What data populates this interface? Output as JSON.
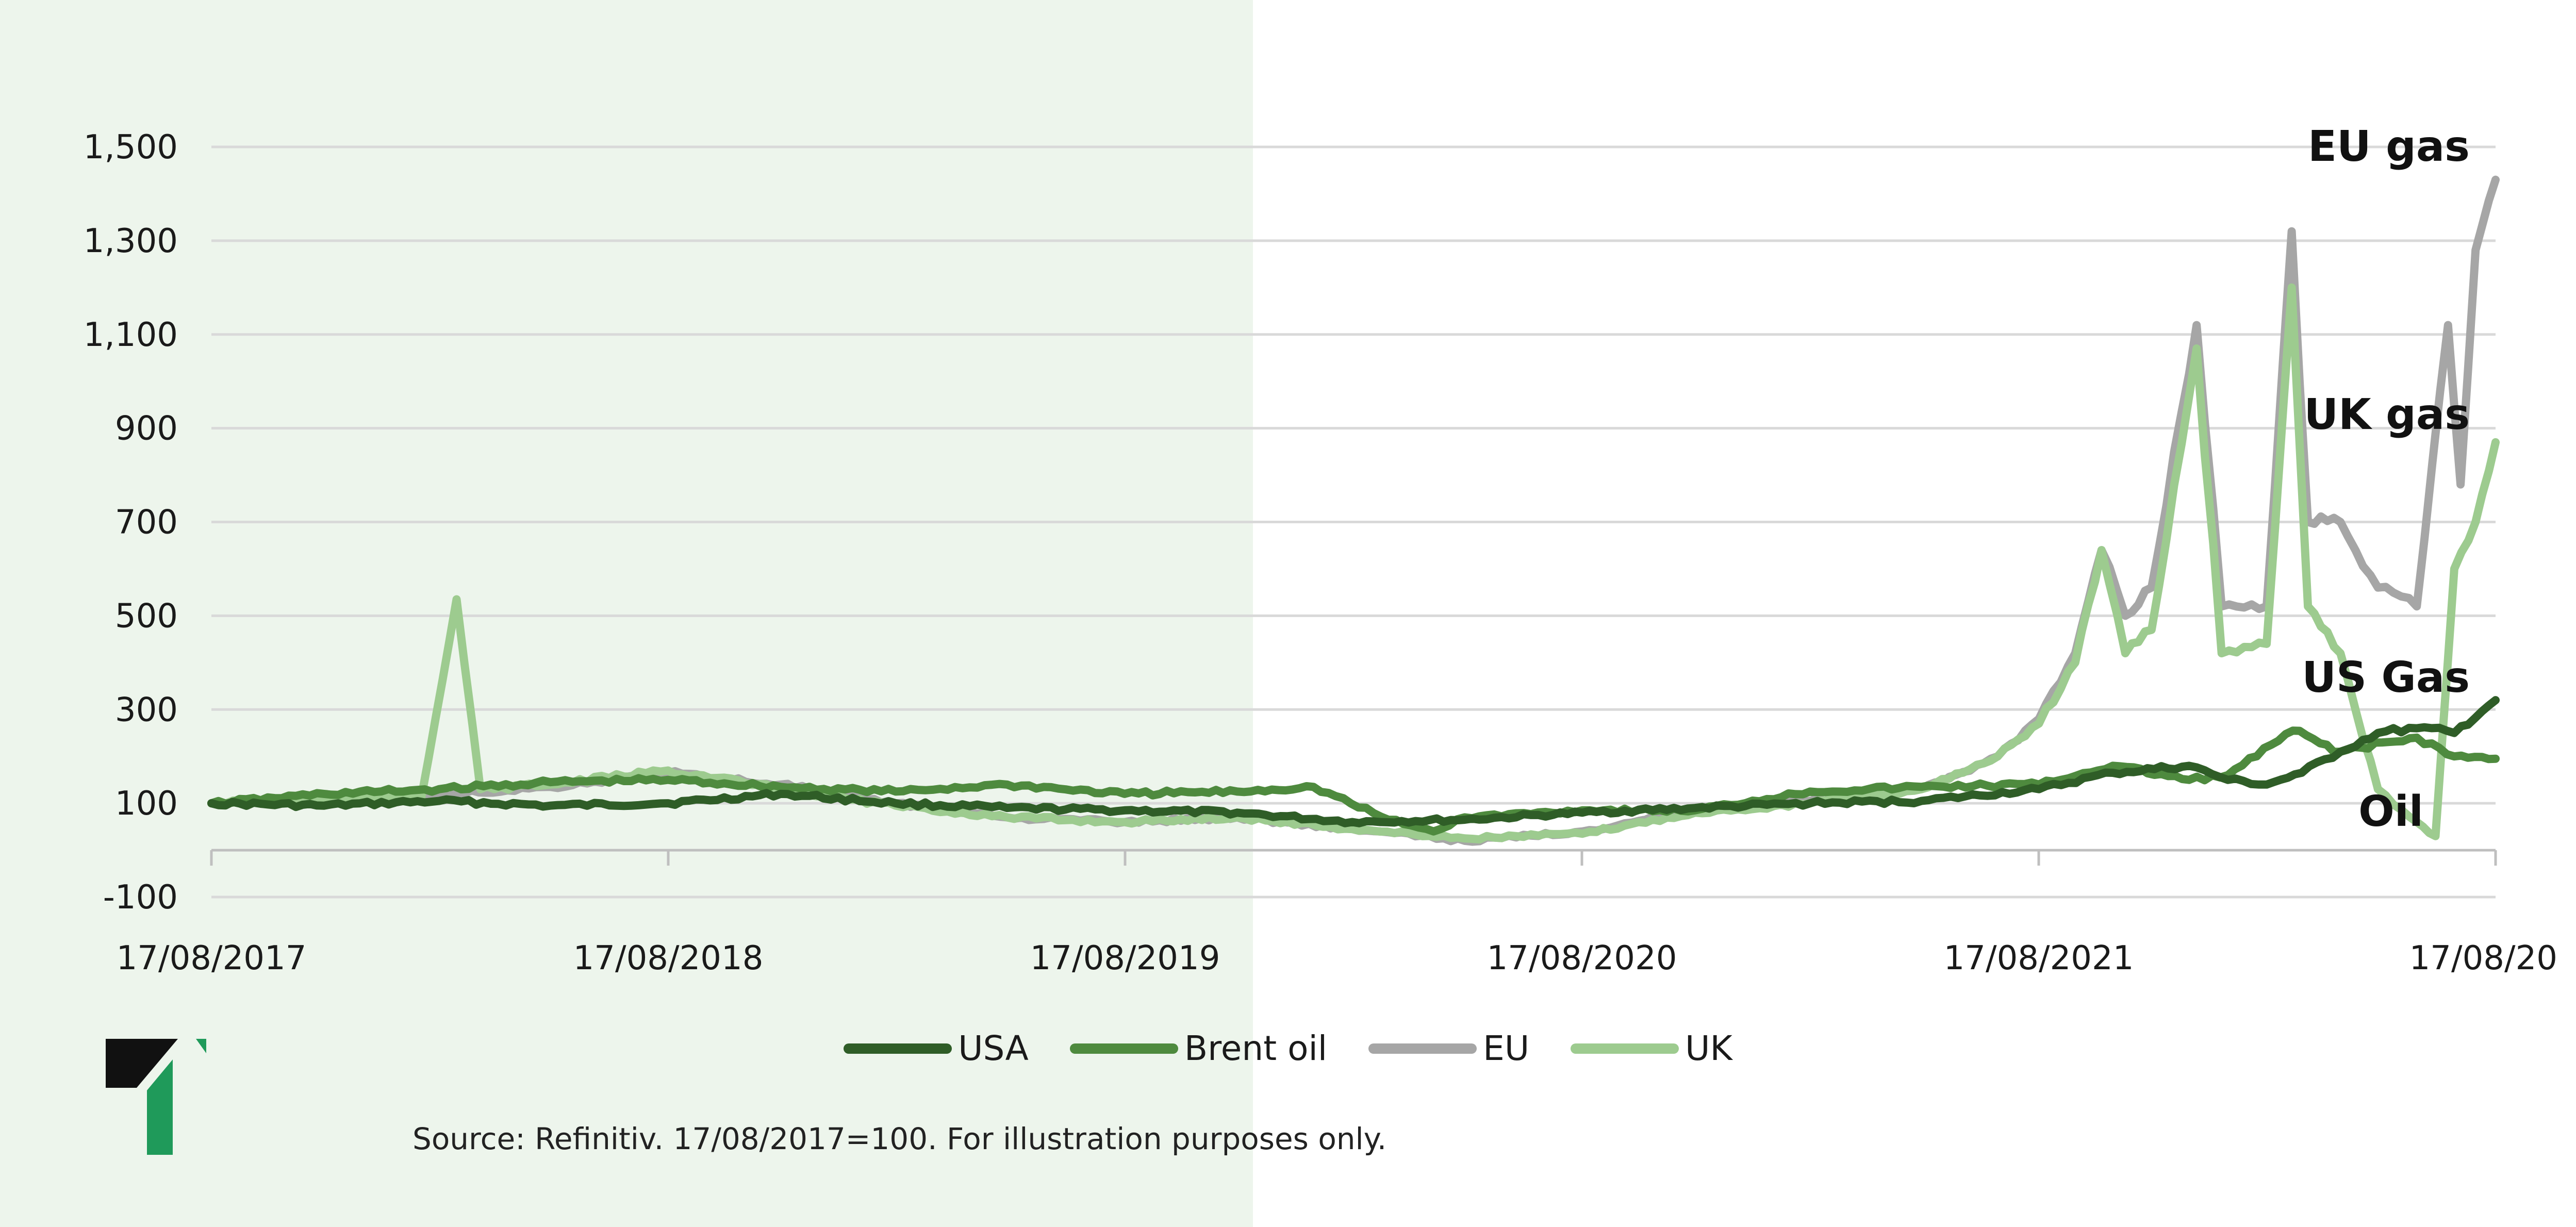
{
  "chart_data": {
    "type": "line",
    "title": "",
    "xlabel": "",
    "ylabel": "",
    "ylim": [
      -100,
      1500
    ],
    "yticks": [
      "-100",
      "100",
      "300",
      "500",
      "700",
      "900",
      "1,100",
      "1,300",
      "1,500"
    ],
    "ytick_values": [
      -100,
      100,
      300,
      500,
      700,
      900,
      1100,
      1300,
      1500
    ],
    "xticks": [
      "17/08/2017",
      "17/08/2018",
      "17/08/2019",
      "17/08/2020",
      "17/08/2021",
      "17/08/20"
    ],
    "xlim": [
      "2017-08-17",
      "2022-08-17"
    ],
    "grid": "horizontal",
    "legend_position": "bottom",
    "annotations": [
      "EU gas",
      "UK gas",
      "US Gas",
      "Oil"
    ],
    "series": [
      {
        "name": "USA",
        "color": "#2f5d27",
        "x": [
          "2017-08-17",
          "2017-11-15",
          "2018-02-15",
          "2018-05-15",
          "2018-08-17",
          "2018-11-15",
          "2019-02-15",
          "2019-05-15",
          "2019-08-17",
          "2019-11-15",
          "2020-02-15",
          "2020-05-15",
          "2020-08-17",
          "2020-11-15",
          "2021-02-15",
          "2021-05-15",
          "2021-08-17",
          "2021-10-15",
          "2021-12-15",
          "2022-01-15",
          "2022-02-15",
          "2022-03-15",
          "2022-04-15",
          "2022-05-15",
          "2022-06-15",
          "2022-07-15",
          "2022-08-17"
        ],
        "values": [
          100,
          95,
          105,
          95,
          100,
          120,
          100,
          90,
          85,
          80,
          60,
          65,
          80,
          90,
          100,
          105,
          130,
          165,
          180,
          150,
          140,
          165,
          210,
          250,
          260,
          250,
          320
        ]
      },
      {
        "name": "Brent oil",
        "color": "#4e8a3e",
        "x": [
          "2017-08-17",
          "2017-11-15",
          "2018-02-15",
          "2018-05-15",
          "2018-08-17",
          "2018-11-15",
          "2019-02-15",
          "2019-05-15",
          "2019-08-17",
          "2019-11-15",
          "2020-01-15",
          "2020-03-15",
          "2020-04-20",
          "2020-05-15",
          "2020-08-17",
          "2020-11-15",
          "2021-02-15",
          "2021-05-15",
          "2021-08-17",
          "2021-10-15",
          "2021-12-15",
          "2022-01-15",
          "2022-03-08",
          "2022-04-15",
          "2022-06-15",
          "2022-07-15",
          "2022-08-17"
        ],
        "values": [
          100,
          120,
          130,
          145,
          150,
          135,
          125,
          140,
          120,
          125,
          135,
          65,
          40,
          70,
          85,
          85,
          125,
          135,
          140,
          180,
          150,
          160,
          255,
          210,
          240,
          200,
          195
        ]
      },
      {
        "name": "EU",
        "color": "#a6a6a6",
        "x": [
          "2017-08-17",
          "2018-02-01",
          "2018-05-15",
          "2018-08-17",
          "2018-11-15",
          "2019-02-15",
          "2019-05-15",
          "2019-08-17",
          "2019-11-15",
          "2020-02-15",
          "2020-05-15",
          "2020-08-17",
          "2020-11-15",
          "2021-02-15",
          "2021-05-15",
          "2021-07-15",
          "2021-08-17",
          "2021-09-15",
          "2021-10-06",
          "2021-10-25",
          "2021-11-15",
          "2021-12-21",
          "2022-01-10",
          "2022-02-15",
          "2022-03-07",
          "2022-03-20",
          "2022-04-15",
          "2022-05-15",
          "2022-06-15",
          "2022-07-10",
          "2022-07-20",
          "2022-08-01",
          "2022-08-17"
        ],
        "values": [
          100,
          115,
          135,
          165,
          140,
          100,
          70,
          60,
          70,
          45,
          20,
          40,
          85,
          105,
          130,
          200,
          280,
          420,
          640,
          500,
          560,
          1120,
          520,
          520,
          1320,
          700,
          700,
          560,
          520,
          1120,
          780,
          1280,
          1430
        ]
      },
      {
        "name": "UK",
        "color": "#9dcb8f",
        "x": [
          "2017-08-17",
          "2018-02-01",
          "2018-03-01",
          "2018-03-20",
          "2018-05-15",
          "2018-08-17",
          "2018-11-15",
          "2019-02-15",
          "2019-05-15",
          "2019-08-17",
          "2019-11-15",
          "2020-02-15",
          "2020-05-15",
          "2020-08-17",
          "2020-11-15",
          "2021-02-15",
          "2021-05-15",
          "2021-07-15",
          "2021-08-17",
          "2021-09-15",
          "2021-10-06",
          "2021-10-25",
          "2021-11-15",
          "2021-12-21",
          "2022-01-10",
          "2022-02-15",
          "2022-03-07",
          "2022-03-20",
          "2022-04-15",
          "2022-05-15",
          "2022-06-15",
          "2022-06-30",
          "2022-07-15",
          "2022-08-01",
          "2022-08-17"
        ],
        "values": [
          100,
          115,
          535,
          130,
          140,
          170,
          130,
          95,
          70,
          60,
          70,
          45,
          25,
          35,
          80,
          100,
          130,
          200,
          270,
          400,
          640,
          420,
          470,
          1070,
          420,
          440,
          1200,
          520,
          420,
          130,
          60,
          30,
          600,
          700,
          870
        ]
      }
    ]
  },
  "legend": [
    "USA",
    "Brent oil",
    "EU",
    "UK"
  ],
  "source": "Source: Refinitiv. 17/08/2017=100. For illustration purposes only."
}
